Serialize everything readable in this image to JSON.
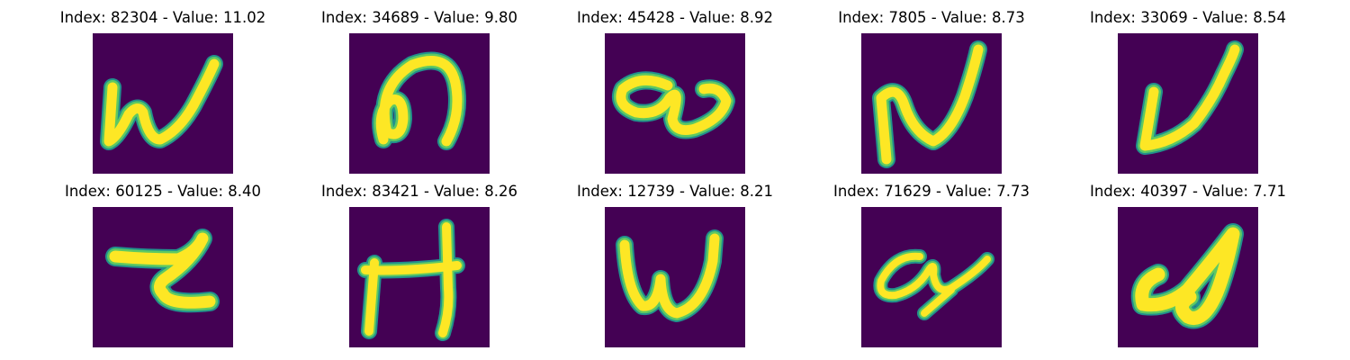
{
  "colors": {
    "background": "#440154",
    "stroke_core": "#fde725",
    "stroke_mid": "#5ec962",
    "stroke_edge": "#21918c"
  },
  "panels": [
    {
      "title": "Index: 82304 - Value: 11.02",
      "glyph": "w"
    },
    {
      "title": "Index: 34689 - Value: 9.80",
      "glyph": "n"
    },
    {
      "title": "Index: 45428 - Value: 8.92",
      "glyph": "a"
    },
    {
      "title": "Index: 7805 - Value: 8.73",
      "glyph": "N"
    },
    {
      "title": "Index: 33069 - Value: 8.54",
      "glyph": "u"
    },
    {
      "title": "Index: 60125 - Value: 8.40",
      "glyph": "Z"
    },
    {
      "title": "Index: 83421 - Value: 8.26",
      "glyph": "H"
    },
    {
      "title": "Index: 12739 - Value: 8.21",
      "glyph": "W"
    },
    {
      "title": "Index: 71629 - Value: 7.73",
      "glyph": "a"
    },
    {
      "title": "Index: 40397 - Value: 7.71",
      "glyph": "g"
    }
  ]
}
